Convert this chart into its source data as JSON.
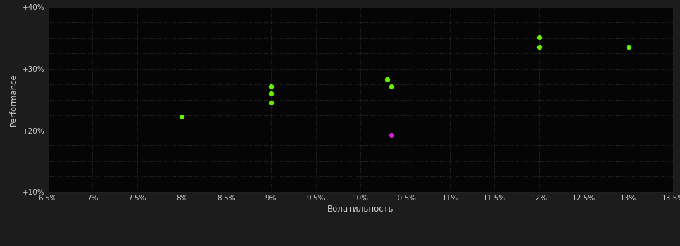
{
  "outer_bg_color": "#1c1c1c",
  "plot_bg_color": "#050505",
  "grid_color": "#2e2e2e",
  "grid_style": ":",
  "xlabel": "Волатильность",
  "ylabel": "Performance",
  "xlim": [
    0.065,
    0.135
  ],
  "ylim": [
    0.1,
    0.4
  ],
  "xticks": [
    0.065,
    0.07,
    0.075,
    0.08,
    0.085,
    0.09,
    0.095,
    0.1,
    0.105,
    0.11,
    0.115,
    0.12,
    0.125,
    0.13,
    0.135
  ],
  "yticks": [
    0.1,
    0.125,
    0.15,
    0.175,
    0.2,
    0.225,
    0.25,
    0.275,
    0.3,
    0.325,
    0.35,
    0.375,
    0.4
  ],
  "ytick_labels_show": [
    0.1,
    0.2,
    0.3,
    0.4
  ],
  "green_points": [
    [
      0.08,
      0.222
    ],
    [
      0.09,
      0.272
    ],
    [
      0.09,
      0.26
    ],
    [
      0.09,
      0.245
    ],
    [
      0.103,
      0.283
    ],
    [
      0.1035,
      0.272
    ],
    [
      0.12,
      0.352
    ],
    [
      0.12,
      0.336
    ],
    [
      0.13,
      0.336
    ]
  ],
  "magenta_points": [
    [
      0.1035,
      0.193
    ]
  ],
  "green_color": "#66ee00",
  "magenta_color": "#cc22cc",
  "marker_size": 28,
  "tick_color": "#cccccc",
  "label_color": "#cccccc",
  "tick_fontsize": 7.5,
  "label_fontsize": 8.5
}
